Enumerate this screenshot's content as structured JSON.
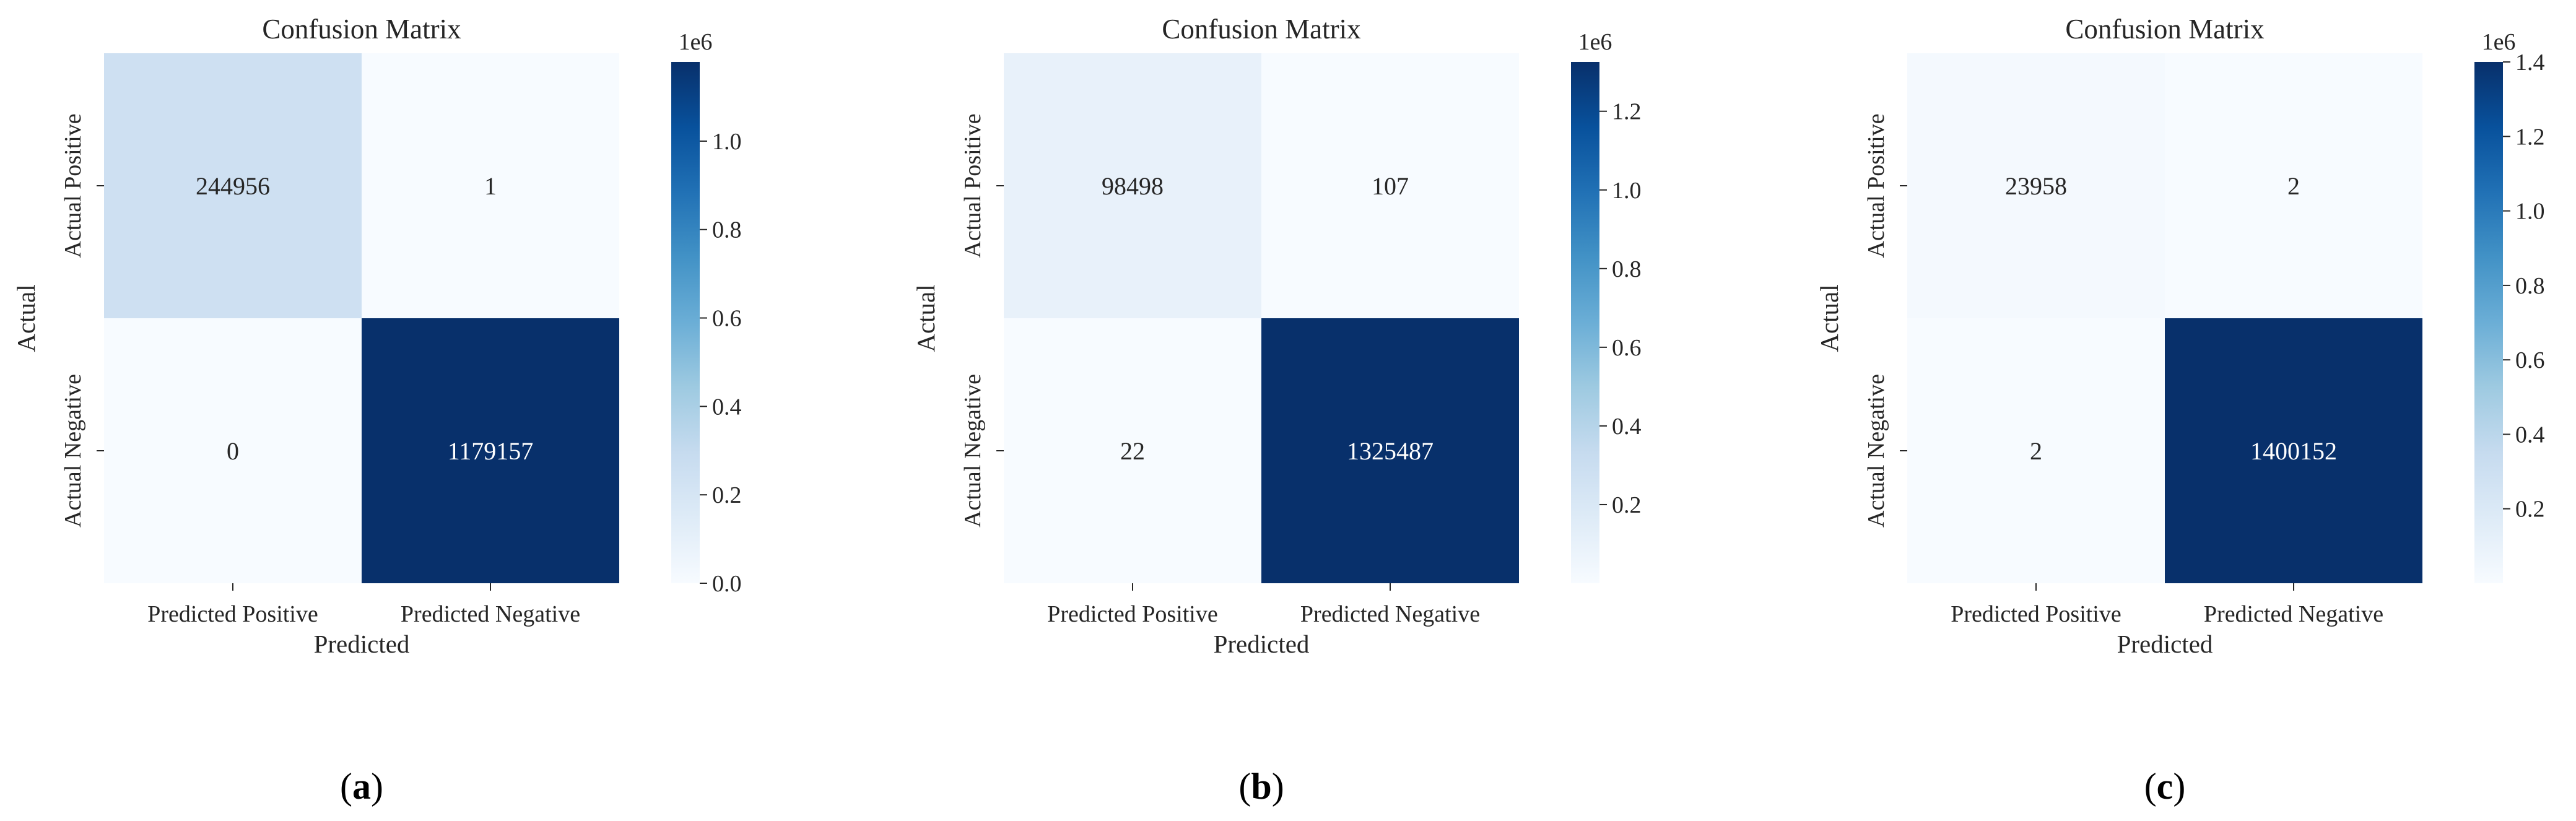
{
  "chart_data": [
    {
      "type": "heatmap",
      "panel_label": "a",
      "title": "Confusion Matrix",
      "xlabel": "Predicted",
      "ylabel": "Actual",
      "x_categories": [
        "Predicted Positive",
        "Predicted Negative"
      ],
      "y_categories": [
        "Actual Positive",
        "Actual Negative"
      ],
      "values": [
        [
          244956,
          1
        ],
        [
          0,
          1179157
        ]
      ],
      "cell_labels": [
        [
          "244956",
          "1"
        ],
        [
          "0",
          "1179157"
        ]
      ],
      "colorbar": {
        "multiplier": "1e6",
        "range": [
          0,
          1179157
        ],
        "ticks": [
          0,
          0.2,
          0.4,
          0.6,
          0.8,
          1.0
        ],
        "tick_labels": [
          "0.0",
          "0.2",
          "0.4",
          "0.6",
          "0.8",
          "1.0"
        ]
      }
    },
    {
      "type": "heatmap",
      "panel_label": "b",
      "title": "Confusion Matrix",
      "xlabel": "Predicted",
      "ylabel": "Actual",
      "x_categories": [
        "Predicted Positive",
        "Predicted Negative"
      ],
      "y_categories": [
        "Actual Positive",
        "Actual Negative"
      ],
      "values": [
        [
          98498,
          107
        ],
        [
          22,
          1325487
        ]
      ],
      "cell_labels": [
        [
          "98498",
          "107"
        ],
        [
          "22",
          "1325487"
        ]
      ],
      "colorbar": {
        "multiplier": "1e6",
        "range": [
          22,
          1325487
        ],
        "ticks": [
          0.2,
          0.4,
          0.6,
          0.8,
          1.0,
          1.2
        ],
        "tick_labels": [
          "0.2",
          "0.4",
          "0.6",
          "0.8",
          "1.0",
          "1.2"
        ]
      }
    },
    {
      "type": "heatmap",
      "panel_label": "c",
      "title": "Confusion Matrix",
      "xlabel": "Predicted",
      "ylabel": "Actual",
      "x_categories": [
        "Predicted Positive",
        "Predicted Negative"
      ],
      "y_categories": [
        "Actual Positive",
        "Actual Negative"
      ],
      "values": [
        [
          23958,
          2
        ],
        [
          2,
          1400152
        ]
      ],
      "cell_labels": [
        [
          "23958",
          "2"
        ],
        [
          "2",
          "1400152"
        ]
      ],
      "colorbar": {
        "multiplier": "1e6",
        "range": [
          2,
          1400152
        ],
        "ticks": [
          0.2,
          0.4,
          0.6,
          0.8,
          1.0,
          1.2,
          1.4
        ],
        "tick_labels": [
          "0.2",
          "0.4",
          "0.6",
          "0.8",
          "1.0",
          "1.2",
          "1.4"
        ]
      }
    }
  ],
  "colormap": [
    "#f7fbff",
    "#deebf7",
    "#c6dbef",
    "#9ecae1",
    "#6baed6",
    "#4292c6",
    "#2171b5",
    "#08519c",
    "#08306b"
  ]
}
